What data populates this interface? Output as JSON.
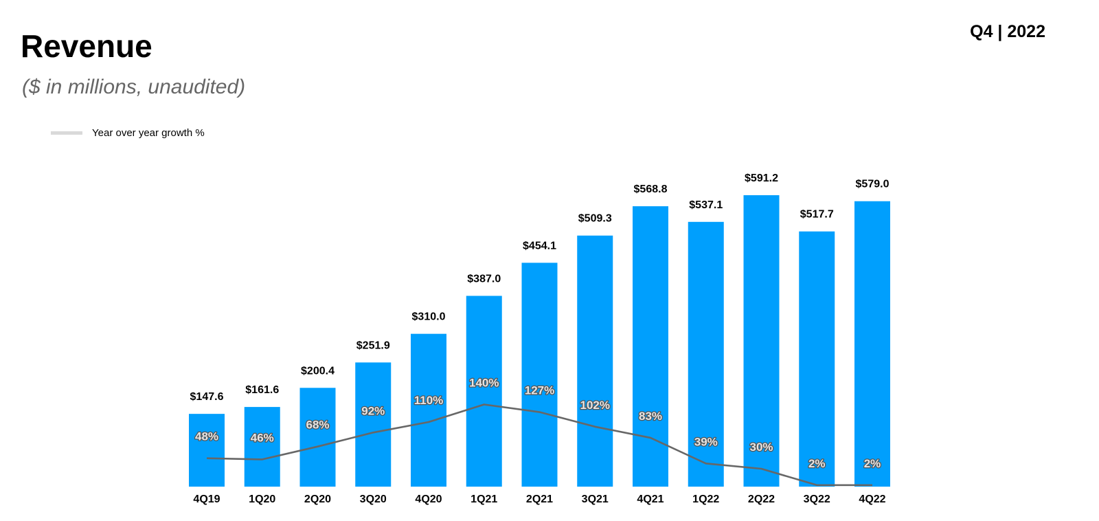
{
  "header": {
    "title": "Revenue",
    "subtitle": "($ in millions, unaudited)",
    "period": "Q4 | 2022"
  },
  "legend": {
    "label": "Year over year growth %"
  },
  "colors": {
    "bar": "#009ffd",
    "line": "#676767",
    "legend_swatch": "#d9d9d9"
  },
  "chart_data": {
    "type": "bar",
    "categories": [
      "4Q19",
      "1Q20",
      "2Q20",
      "3Q20",
      "4Q20",
      "1Q21",
      "2Q21",
      "3Q21",
      "4Q21",
      "1Q22",
      "2Q22",
      "3Q22",
      "4Q22"
    ],
    "series": [
      {
        "type": "bar",
        "values": [
          147.6,
          161.6,
          200.4,
          251.9,
          310.0,
          387.0,
          454.1,
          509.3,
          568.8,
          537.1,
          591.2,
          517.7,
          579.0
        ],
        "labels": [
          "$147.6",
          "$161.6",
          "$200.4",
          "$251.9",
          "$310.0",
          "$387.0",
          "$454.1",
          "$509.3",
          "$568.8",
          "$537.1",
          "$591.2",
          "$517.7",
          "$579.0"
        ]
      },
      {
        "name": "Year over year growth %",
        "type": "line",
        "values": [
          48,
          46,
          68,
          92,
          110,
          140,
          127,
          102,
          83,
          39,
          30,
          2,
          2
        ],
        "labels": [
          "48%",
          "46%",
          "68%",
          "92%",
          "110%",
          "140%",
          "127%",
          "102%",
          "83%",
          "39%",
          "30%",
          "2%",
          "2%"
        ]
      }
    ],
    "title": "Revenue",
    "xlabel": "",
    "ylabel": "",
    "grid": false,
    "legend_position": "top-left"
  }
}
